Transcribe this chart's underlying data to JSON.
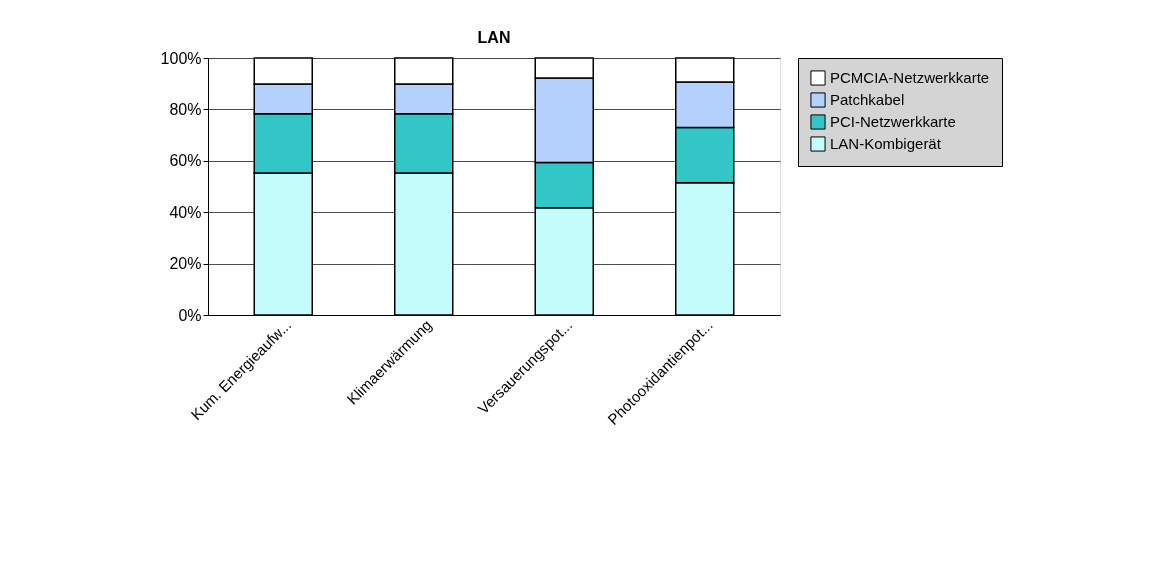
{
  "chart_data": {
    "type": "bar",
    "title": "LAN",
    "stacked": true,
    "categories": [
      "Kum. Energieaufw...",
      "Klimaerwärmung",
      "Versauerungspot...",
      "Photooxidantienpot..."
    ],
    "series": [
      {
        "name": "LAN-Kombigerät",
        "color": "#c4fcfc",
        "values": [
          55.3,
          55.3,
          41.7,
          51.5
        ]
      },
      {
        "name": "PCI-Netzwerkkarte",
        "color": "#33c6c6",
        "values": [
          23.0,
          23.0,
          17.6,
          21.5
        ]
      },
      {
        "name": "Patchkabel",
        "color": "#b3d1fc",
        "values": [
          11.6,
          11.6,
          32.9,
          17.7
        ]
      },
      {
        "name": "PCMCIA-Netzwerkkarte",
        "color": "#ffffff",
        "values": [
          10.1,
          10.1,
          7.8,
          9.3
        ]
      }
    ],
    "ylim": [
      0,
      100
    ],
    "yticks": [
      {
        "value": 0,
        "label": "0%"
      },
      {
        "value": 20,
        "label": "20%"
      },
      {
        "value": 40,
        "label": "40%"
      },
      {
        "value": 60,
        "label": "60%"
      },
      {
        "value": 80,
        "label": "80%"
      },
      {
        "value": 100,
        "label": "100%"
      }
    ],
    "grid": "y",
    "legend": "right"
  }
}
